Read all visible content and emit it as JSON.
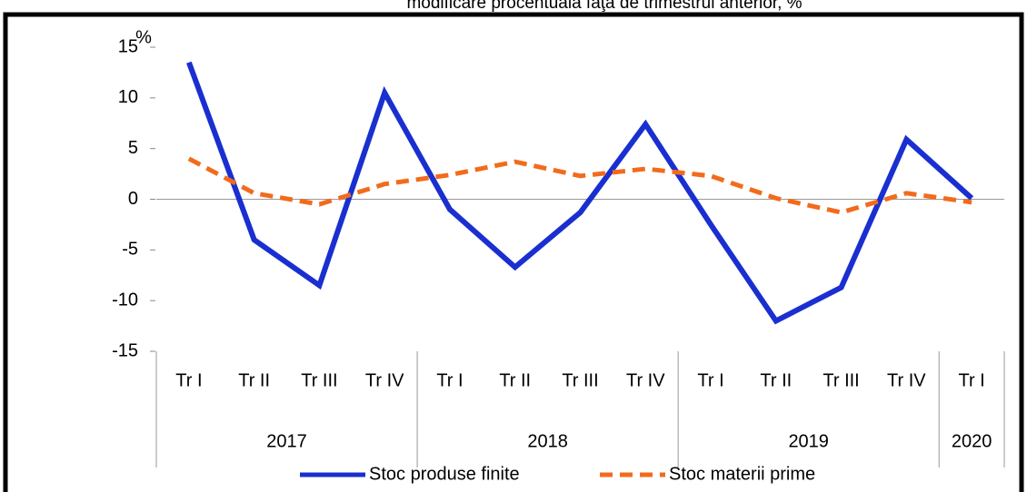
{
  "chart_data": {
    "type": "line",
    "title": "modificare procentuală faţă de trimestrul anterior, %",
    "y_label": "%",
    "categories": [
      "Tr I",
      "Tr II",
      "Tr III",
      "Tr IV",
      "Tr I",
      "Tr II",
      "Tr III",
      "Tr IV",
      "Tr I",
      "Tr II",
      "Tr III",
      "Tr IV",
      "Tr I"
    ],
    "category_groups": [
      {
        "label": "2017",
        "count": 4
      },
      {
        "label": "2018",
        "count": 4
      },
      {
        "label": "2019",
        "count": 4
      },
      {
        "label": "2020",
        "count": 1
      }
    ],
    "series": [
      {
        "name": "Stoc produse finite",
        "color": "#1a2fd0",
        "dash": false,
        "values": [
          13.5,
          -4,
          -8.5,
          10.5,
          -1,
          -6.7,
          -1.3,
          7.4,
          -2.5,
          -12,
          -8.7,
          5.9,
          0.1
        ]
      },
      {
        "name": "Stoc materii prime",
        "color": "#f26b1d",
        "dash": true,
        "values": [
          4,
          0.6,
          -0.5,
          1.5,
          2.4,
          3.7,
          2.3,
          3,
          2.3,
          0.1,
          -1.3,
          0.6,
          -0.3
        ]
      }
    ],
    "ylim": [
      -15,
      15
    ],
    "yticks": [
      -15,
      -10,
      -5,
      0,
      5,
      10,
      15
    ]
  }
}
